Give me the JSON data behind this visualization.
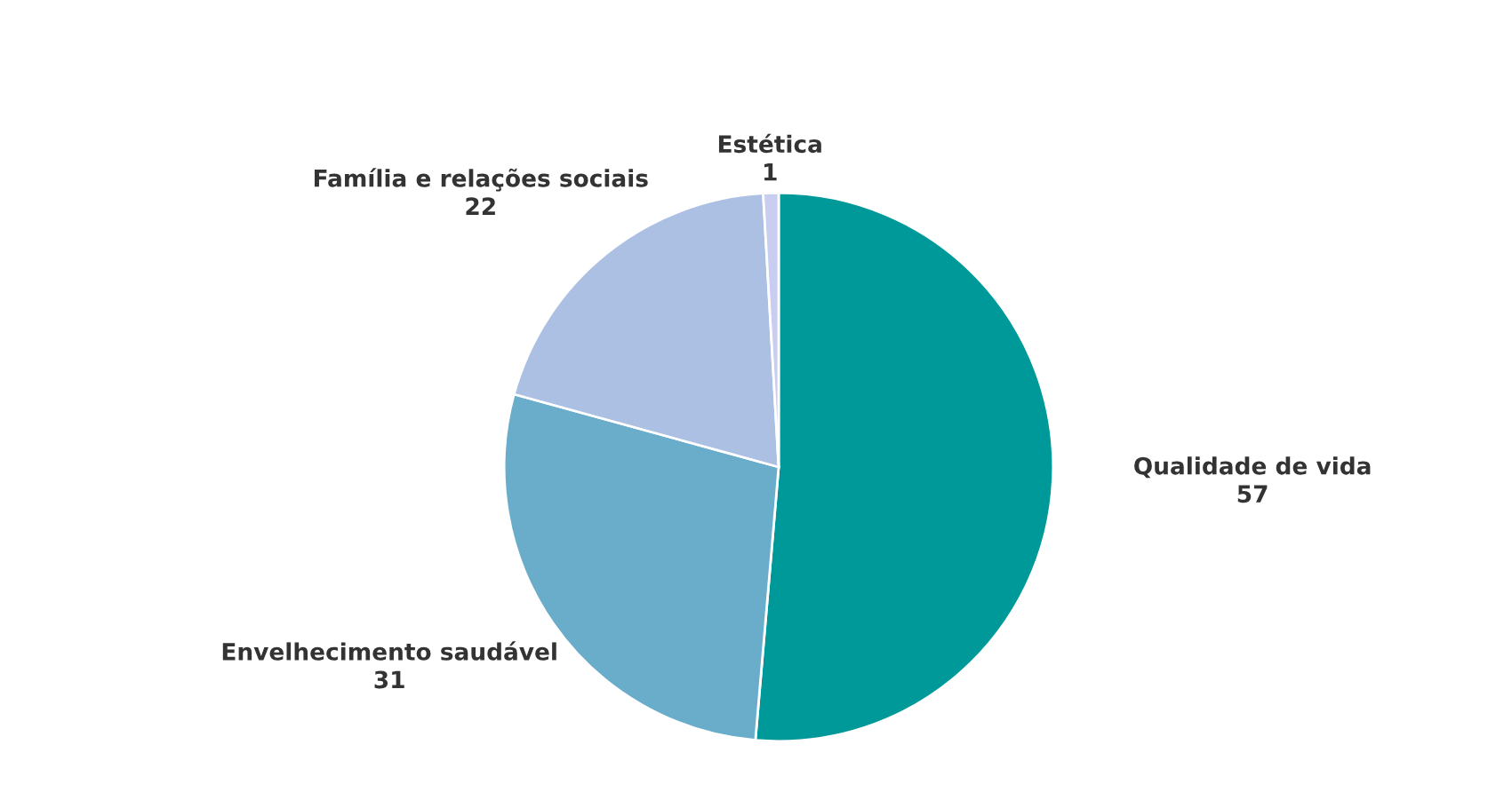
{
  "chart_data": {
    "type": "pie",
    "categories": [
      "Qualidade de vida",
      "Envelhecimento saudável",
      "Família e relações sociais",
      "Estética"
    ],
    "values": [
      57,
      31,
      22,
      1
    ],
    "colors": [
      "#009999",
      "#6aadca",
      "#abc0e2",
      "#c9cdf0"
    ],
    "data_labels": true
  }
}
